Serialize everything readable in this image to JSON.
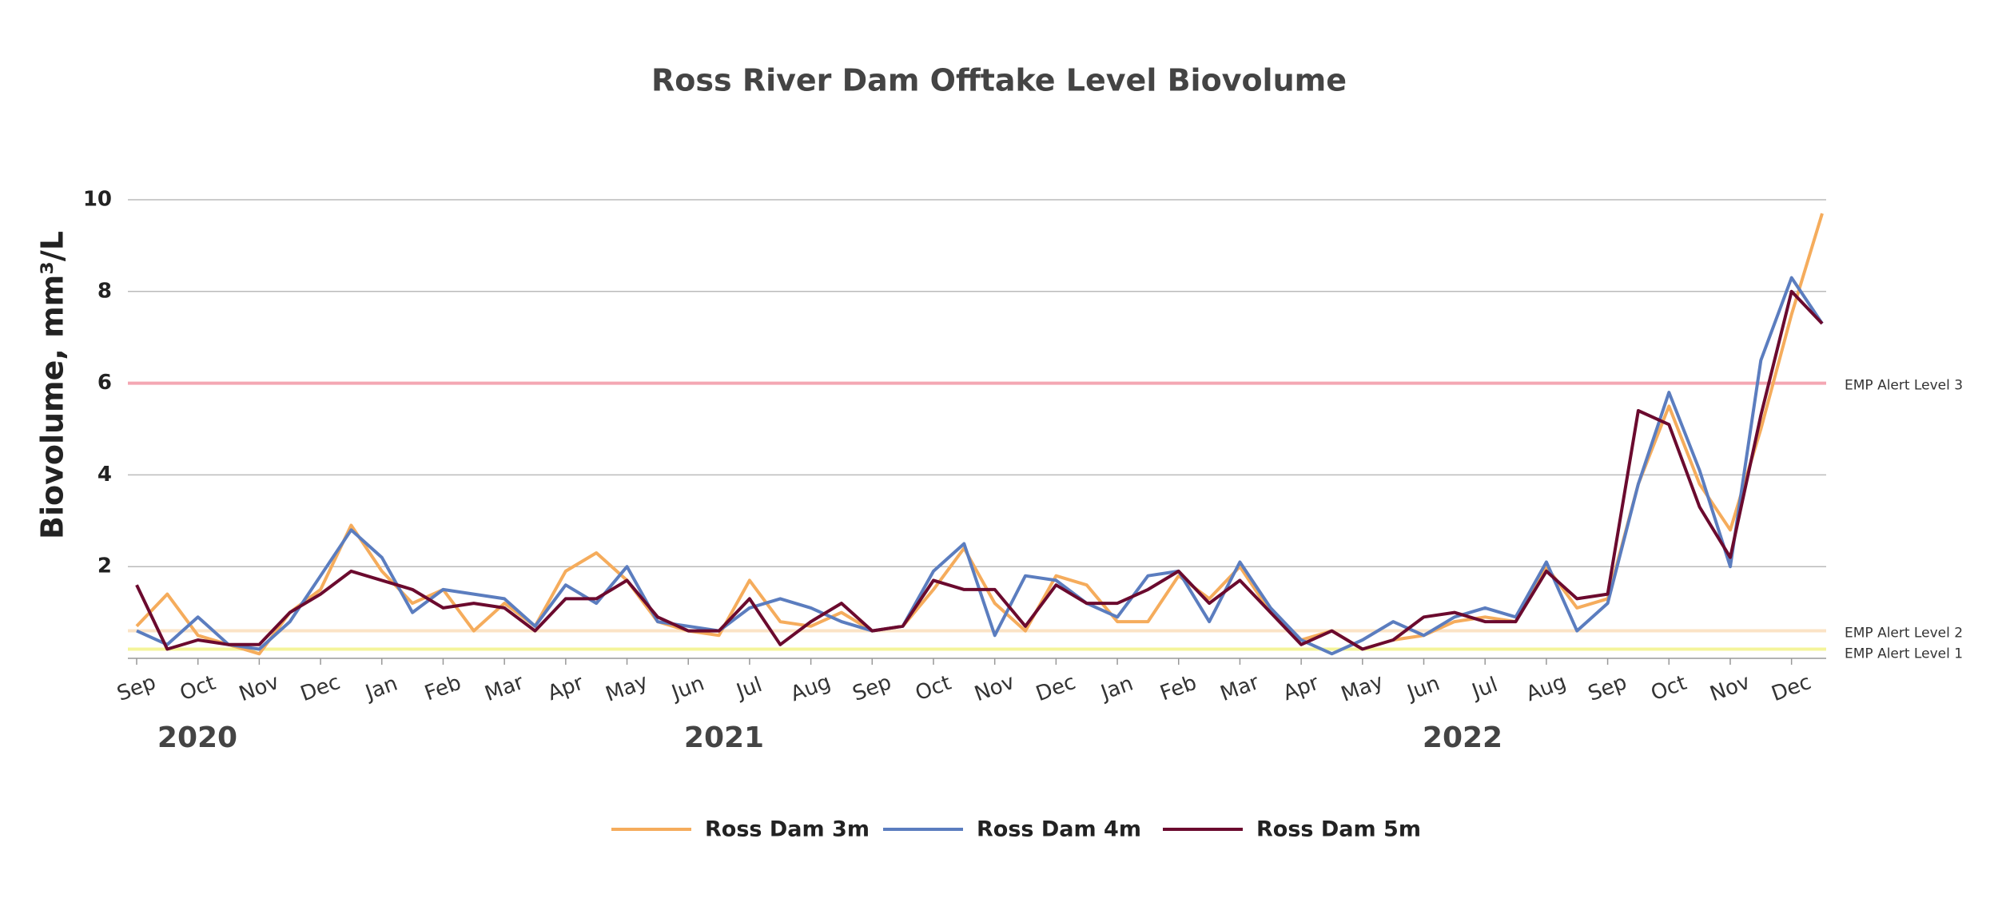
{
  "chart_data": {
    "type": "line",
    "title": "Ross River Dam Offtake Level Biovolume",
    "y_label": "Biovolume, mm³/L",
    "year_labels": [
      "2020",
      "2021",
      "2022"
    ],
    "categories": [
      "Sep",
      null,
      "Oct",
      null,
      "Nov",
      null,
      "Dec",
      null,
      "Jan",
      null,
      "Feb",
      null,
      "Mar",
      null,
      "Apr",
      null,
      "May",
      null,
      "Jun",
      null,
      "Jul",
      null,
      "Aug",
      null,
      "Sep",
      null,
      "Oct",
      null,
      "Nov",
      null,
      "Dec",
      null,
      "Jan",
      null,
      "Feb",
      null,
      "Mar",
      null,
      "Apr",
      null,
      "May",
      null,
      "Jun",
      null,
      "Jul",
      null,
      "Aug",
      null,
      "Sep",
      null,
      "Oct",
      null,
      "Nov",
      null,
      "Dec",
      null
    ],
    "series": [
      {
        "name": "Ross Dam 3m",
        "color": "#f5ac5c",
        "values": [
          0.7,
          1.4,
          0.5,
          0.3,
          0.1,
          1.0,
          1.5,
          2.9,
          1.9,
          1.2,
          1.5,
          0.6,
          1.2,
          0.7,
          1.9,
          2.3,
          1.7,
          0.8,
          0.6,
          0.5,
          1.7,
          0.8,
          0.7,
          1.0,
          0.6,
          0.7,
          1.5,
          2.4,
          1.2,
          0.6,
          1.8,
          1.6,
          0.8,
          0.8,
          1.8,
          1.3,
          2.0,
          1.0,
          0.4,
          0.6,
          0.2,
          0.4,
          0.5,
          0.8,
          0.9,
          0.8,
          2.0,
          1.1,
          1.3,
          3.8,
          5.5,
          3.8,
          2.8,
          5.0,
          7.5,
          9.7
        ]
      },
      {
        "name": "Ross Dam 4m",
        "color": "#5b7dbf",
        "values": [
          0.6,
          0.3,
          0.9,
          0.3,
          0.2,
          0.8,
          1.8,
          2.8,
          2.2,
          1.0,
          1.5,
          1.4,
          1.3,
          0.7,
          1.6,
          1.2,
          2.0,
          0.8,
          0.7,
          0.6,
          1.1,
          1.3,
          1.1,
          0.8,
          0.6,
          0.7,
          1.9,
          2.5,
          0.5,
          1.8,
          1.7,
          1.2,
          0.9,
          1.8,
          1.9,
          0.8,
          2.1,
          1.1,
          0.4,
          0.1,
          0.4,
          0.8,
          0.5,
          0.9,
          1.1,
          0.9,
          2.1,
          0.6,
          1.2,
          3.8,
          5.8,
          4.1,
          2.0,
          6.5,
          8.3,
          7.3
        ]
      },
      {
        "name": "Ross Dam 5m",
        "color": "#6b0a2e",
        "values": [
          1.6,
          0.2,
          0.4,
          0.3,
          0.3,
          1.0,
          1.4,
          1.9,
          1.7,
          1.5,
          1.1,
          1.2,
          1.1,
          0.6,
          1.3,
          1.3,
          1.7,
          0.9,
          0.6,
          0.6,
          1.3,
          0.3,
          0.8,
          1.2,
          0.6,
          0.7,
          1.7,
          1.5,
          1.5,
          0.7,
          1.6,
          1.2,
          1.2,
          1.5,
          1.9,
          1.2,
          1.7,
          1.0,
          0.3,
          0.6,
          0.2,
          0.4,
          0.9,
          1.0,
          0.8,
          0.8,
          1.9,
          1.3,
          1.4,
          5.4,
          5.1,
          3.3,
          2.2,
          5.3,
          8.0,
          7.3
        ]
      }
    ],
    "reference_lines": [
      {
        "label": "EMP Alert Level 3",
        "value": 6,
        "color": "#f4a7b3"
      },
      {
        "label": "EMP Alert Level 2",
        "value": 0.6,
        "color": "#fbe3c6"
      },
      {
        "label": "EMP Alert Level 1",
        "value": 0.2,
        "color": "#f4f49a"
      }
    ],
    "ylim": [
      0,
      10
    ],
    "yticks": [
      2,
      4,
      6,
      8,
      10
    ],
    "grid": true
  }
}
